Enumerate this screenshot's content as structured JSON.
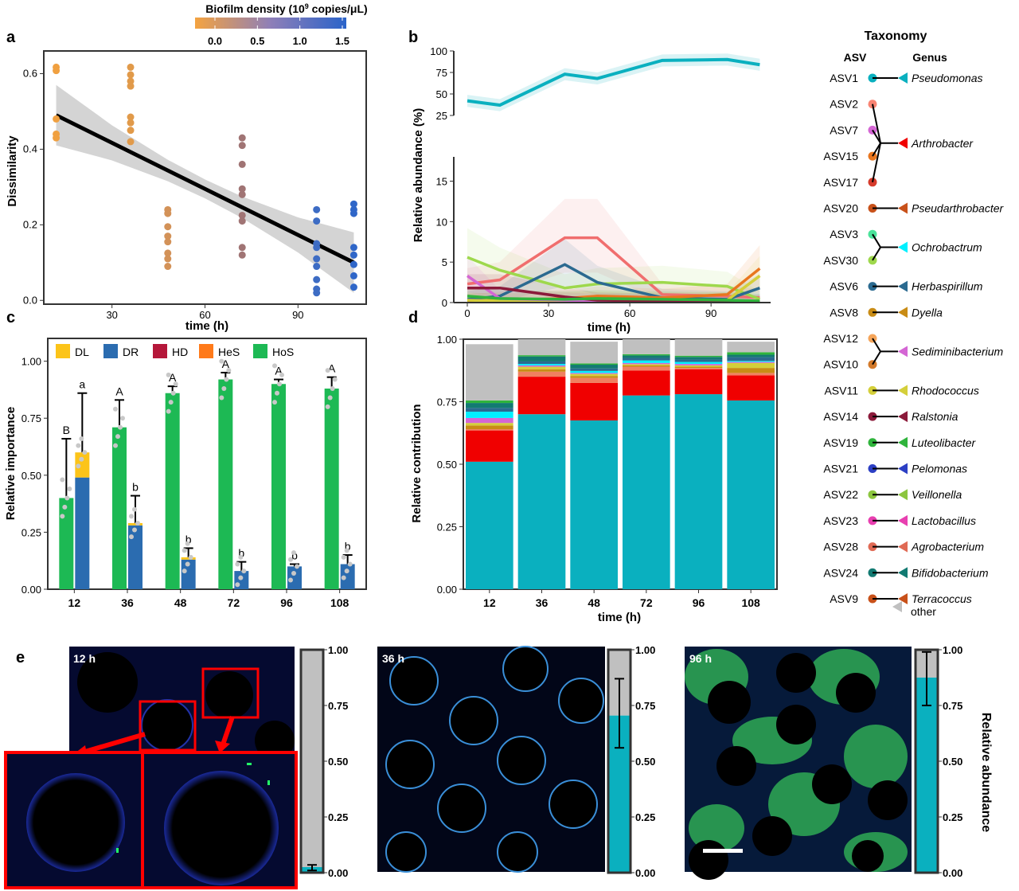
{
  "colors": {
    "pseudomonas": "#0ab0bf",
    "arthrobacter": "#f00000",
    "green": "#1db954",
    "blue": "#2b6cb0",
    "yellow": "#fcc419",
    "darkred": "#b5173a",
    "orange": "#ff7a1a",
    "grey": "#c0c0c0"
  },
  "colorbar": {
    "title_prefix": "Biofilm density (10",
    "title_sup": "9",
    "title_suffix": " copies/μL)",
    "ticks": [
      "0.0",
      "0.5",
      "1.0",
      "1.5"
    ],
    "stops": [
      "#f4a340",
      "#8e7fb8",
      "#2a63c9"
    ]
  },
  "taxonomy": {
    "title": "Taxonomy",
    "asv_header": "ASV",
    "genus_header": "Genus",
    "other_label": "other",
    "groups": [
      {
        "asvs": [
          {
            "name": "ASV1",
            "color": "#0ab0bf"
          }
        ],
        "genus": "Pseudomonas",
        "arrow": "#0ab0bf"
      },
      {
        "asvs": [
          {
            "name": "ASV2",
            "color": "#f98473"
          },
          {
            "name": "ASV7",
            "color": "#d466d4"
          },
          {
            "name": "ASV15",
            "color": "#e8761f"
          },
          {
            "name": "ASV17",
            "color": "#d63b2c"
          }
        ],
        "genus": "Arthrobacter",
        "arrow": "#f00000"
      },
      {
        "asvs": [
          {
            "name": "ASV20",
            "color": "#c8511a"
          }
        ],
        "genus": "Pseudarthrobacter",
        "arrow": "#c8511a"
      },
      {
        "asvs": [
          {
            "name": "ASV3",
            "color": "#4be39a"
          },
          {
            "name": "ASV30",
            "color": "#9ed84c"
          }
        ],
        "genus": "Ochrobactrum",
        "arrow": "#00f0ff"
      },
      {
        "asvs": [
          {
            "name": "ASV6",
            "color": "#2b6a90"
          }
        ],
        "genus": "Herbaspirillum",
        "arrow": "#2b6a90"
      },
      {
        "asvs": [
          {
            "name": "ASV8",
            "color": "#c98c15"
          }
        ],
        "genus": "Dyella",
        "arrow": "#c98c15"
      },
      {
        "asvs": [
          {
            "name": "ASV12",
            "color": "#f5a55a"
          },
          {
            "name": "ASV10",
            "color": "#d47a2a"
          }
        ],
        "genus": "Sediminibacterium",
        "arrow": "#d466d4"
      },
      {
        "asvs": [
          {
            "name": "ASV11",
            "color": "#d4cf3a"
          }
        ],
        "genus": "Rhodococcus",
        "arrow": "#d4cf3a"
      },
      {
        "asvs": [
          {
            "name": "ASV14",
            "color": "#8b1a3a"
          }
        ],
        "genus": "Ralstonia",
        "arrow": "#8b1a3a"
      },
      {
        "asvs": [
          {
            "name": "ASV19",
            "color": "#2fb43c"
          }
        ],
        "genus": "Luteolibacter",
        "arrow": "#2fb43c"
      },
      {
        "asvs": [
          {
            "name": "ASV21",
            "color": "#2c3fc4"
          }
        ],
        "genus": "Pelomonas",
        "arrow": "#2c3fc4"
      },
      {
        "asvs": [
          {
            "name": "ASV22",
            "color": "#8cc63f"
          }
        ],
        "genus": "Veillonella",
        "arrow": "#8cc63f"
      },
      {
        "asvs": [
          {
            "name": "ASV23",
            "color": "#e83fb0"
          }
        ],
        "genus": "Lactobacillus",
        "arrow": "#e83fb0"
      },
      {
        "asvs": [
          {
            "name": "ASV28",
            "color": "#e06a55"
          }
        ],
        "genus": "Agrobacterium",
        "arrow": "#e06a55"
      },
      {
        "asvs": [
          {
            "name": "ASV24",
            "color": "#127a72"
          }
        ],
        "genus": "Bifidobacterium",
        "arrow": "#127a72"
      },
      {
        "asvs": [
          {
            "name": "ASV9",
            "color": "#c8511a"
          }
        ],
        "genus": "Terracoccus",
        "arrow": "#c8511a"
      }
    ]
  },
  "chart_data": [
    {
      "panel": "a",
      "type": "scatter",
      "xlabel": "time (h)",
      "ylabel": "Dissimilarity",
      "xlim": [
        8,
        112
      ],
      "ylim": [
        -0.01,
        0.66
      ],
      "xticks": [
        30,
        60,
        90
      ],
      "yticks": [
        0.0,
        0.2,
        0.4,
        0.6
      ],
      "points": [
        {
          "x": 12,
          "y": 0.617
        },
        {
          "x": 12,
          "y": 0.608
        },
        {
          "x": 12,
          "y": 0.48
        },
        {
          "x": 12,
          "y": 0.44
        },
        {
          "x": 12,
          "y": 0.43
        },
        {
          "x": 36,
          "y": 0.617
        },
        {
          "x": 36,
          "y": 0.597
        },
        {
          "x": 36,
          "y": 0.58
        },
        {
          "x": 36,
          "y": 0.567
        },
        {
          "x": 36,
          "y": 0.485
        },
        {
          "x": 36,
          "y": 0.47
        },
        {
          "x": 36,
          "y": 0.45
        },
        {
          "x": 36,
          "y": 0.42
        },
        {
          "x": 48,
          "y": 0.24
        },
        {
          "x": 48,
          "y": 0.23
        },
        {
          "x": 48,
          "y": 0.195
        },
        {
          "x": 48,
          "y": 0.17
        },
        {
          "x": 48,
          "y": 0.155
        },
        {
          "x": 48,
          "y": 0.125
        },
        {
          "x": 48,
          "y": 0.11
        },
        {
          "x": 48,
          "y": 0.09
        },
        {
          "x": 72,
          "y": 0.43
        },
        {
          "x": 72,
          "y": 0.41
        },
        {
          "x": 72,
          "y": 0.36
        },
        {
          "x": 72,
          "y": 0.295
        },
        {
          "x": 72,
          "y": 0.28
        },
        {
          "x": 72,
          "y": 0.225
        },
        {
          "x": 72,
          "y": 0.21
        },
        {
          "x": 72,
          "y": 0.14
        },
        {
          "x": 72,
          "y": 0.12
        },
        {
          "x": 96,
          "y": 0.24
        },
        {
          "x": 96,
          "y": 0.21
        },
        {
          "x": 96,
          "y": 0.15
        },
        {
          "x": 96,
          "y": 0.14
        },
        {
          "x": 96,
          "y": 0.11
        },
        {
          "x": 96,
          "y": 0.09
        },
        {
          "x": 96,
          "y": 0.055
        },
        {
          "x": 96,
          "y": 0.03
        },
        {
          "x": 96,
          "y": 0.02
        },
        {
          "x": 108,
          "y": 0.255
        },
        {
          "x": 108,
          "y": 0.24
        },
        {
          "x": 108,
          "y": 0.23
        },
        {
          "x": 108,
          "y": 0.14
        },
        {
          "x": 108,
          "y": 0.12
        },
        {
          "x": 108,
          "y": 0.095
        },
        {
          "x": 108,
          "y": 0.065
        },
        {
          "x": 108,
          "y": 0.035
        }
      ],
      "point_colors": {
        "12": "#f0a040",
        "36": "#e19a4a",
        "48": "#d39258",
        "72": "#a07474",
        "96": "#3d6cc4",
        "108": "#2f66c8"
      },
      "regression": {
        "x": [
          12,
          108
        ],
        "y": [
          0.49,
          0.1
        ]
      }
    },
    {
      "panel": "b",
      "type": "line",
      "xlabel": "time (h)",
      "ylabel": "Relative abundance (%)",
      "x": [
        0,
        12,
        36,
        48,
        72,
        96,
        108
      ],
      "xticks": [
        0,
        30,
        60,
        90
      ],
      "upper": {
        "ylim": [
          25,
          100
        ],
        "yticks": [
          25,
          50,
          75,
          100
        ]
      },
      "lower": {
        "ylim": [
          0,
          18
        ],
        "yticks": [
          0,
          5,
          10,
          15
        ]
      },
      "series": [
        {
          "color": "#0ab0bf",
          "values": [
            42,
            37,
            73,
            68,
            89,
            90,
            84
          ],
          "panel": "upper"
        },
        {
          "color": "#f06e6e",
          "values": [
            2.3,
            2.8,
            8.0,
            8.0,
            1.0,
            0.8,
            0.6
          ]
        },
        {
          "color": "#9ed84c",
          "values": [
            5.6,
            4.0,
            1.8,
            2.3,
            2.5,
            2.0,
            0.4
          ]
        },
        {
          "color": "#2b6a90",
          "values": [
            0.4,
            0.8,
            4.7,
            2.5,
            0.6,
            0.4,
            1.8
          ]
        },
        {
          "color": "#e8761f",
          "values": [
            0.2,
            0.3,
            0.5,
            0.8,
            0.6,
            1.0,
            4.2
          ]
        },
        {
          "color": "#d4cf3a",
          "values": [
            0.3,
            0.2,
            0.3,
            0.4,
            0.3,
            0.3,
            3.3
          ]
        },
        {
          "color": "#d466d4",
          "values": [
            3.3,
            0.5,
            0.3,
            0.2,
            0.1,
            0.1,
            0.1
          ]
        },
        {
          "color": "#8b1a3a",
          "values": [
            1.8,
            1.8,
            0.7,
            0.3,
            0.2,
            0.1,
            0.1
          ]
        },
        {
          "color": "#2fb43c",
          "values": [
            0.8,
            0.5,
            0.4,
            0.5,
            0.4,
            0.3,
            0.2
          ]
        }
      ]
    },
    {
      "panel": "c",
      "type": "bar",
      "xlabel": "",
      "ylabel": "Relative importance",
      "ylim": [
        0,
        1.1
      ],
      "yticks": [
        0.0,
        0.25,
        0.5,
        0.75,
        1.0
      ],
      "categories": [
        "12",
        "36",
        "48",
        "72",
        "96",
        "108"
      ],
      "legend": [
        "DL",
        "DR",
        "HD",
        "HeS",
        "HoS"
      ],
      "legend_colors": [
        "#fcc419",
        "#2b6cb0",
        "#b5173a",
        "#ff7a1a",
        "#1db954"
      ],
      "hos": [
        0.4,
        0.71,
        0.86,
        0.92,
        0.9,
        0.88
      ],
      "hos_err": [
        0.26,
        0.12,
        0.03,
        0.03,
        0.02,
        0.05
      ],
      "dr": [
        0.49,
        0.28,
        0.13,
        0.08,
        0.1,
        0.11
      ],
      "dl": [
        0.11,
        0.01,
        0.01,
        0.0,
        0.0,
        0.0
      ],
      "dr_err": [
        0.26,
        0.12,
        0.04,
        0.04,
        0.01,
        0.04
      ],
      "letters_upper": [
        "B",
        "A",
        "A",
        "A",
        "A",
        "A"
      ],
      "letters_lower": [
        "a",
        "b",
        "b",
        "b",
        "b",
        "b"
      ]
    },
    {
      "panel": "d",
      "type": "bar",
      "xlabel": "time (h)",
      "ylabel": "Relative contribution",
      "ylim": [
        0,
        1.0
      ],
      "yticks": [
        0.0,
        0.25,
        0.5,
        0.75,
        1.0
      ],
      "categories": [
        "12",
        "36",
        "48",
        "72",
        "96",
        "108"
      ],
      "stack_order": [
        "Pseudomonas",
        "Arthrobacter",
        "Pseudarthrobacter",
        "Dyella",
        "Rhodococcus",
        "Sediminibacterium",
        "Ochrobactrum",
        "Herbaspirillum",
        "Bifidobacterium",
        "Luteolibacter",
        "other"
      ],
      "stack_colors": [
        "#0ab0bf",
        "#f00000",
        "#f08060",
        "#c98c15",
        "#d4cf3a",
        "#d466d4",
        "#00f0ff",
        "#2b6a90",
        "#127a72",
        "#2fb43c",
        "#c0c0c0"
      ],
      "values": [
        [
          0.51,
          0.7,
          0.675,
          0.775,
          0.78,
          0.755
        ],
        [
          0.125,
          0.15,
          0.15,
          0.1,
          0.1,
          0.1
        ],
        [
          0.005,
          0.02,
          0.02,
          0.015,
          0.005,
          0.01
        ],
        [
          0.015,
          0.01,
          0.008,
          0.005,
          0.005,
          0.02
        ],
        [
          0.01,
          0.01,
          0.008,
          0.005,
          0.005,
          0.02
        ],
        [
          0.02,
          0.005,
          0.004,
          0.005,
          0.006,
          0.004
        ],
        [
          0.025,
          0.006,
          0.008,
          0.01,
          0.008,
          0.004
        ],
        [
          0.015,
          0.01,
          0.01,
          0.01,
          0.01,
          0.015
        ],
        [
          0.02,
          0.02,
          0.015,
          0.01,
          0.01,
          0.01
        ],
        [
          0.01,
          0.005,
          0.005,
          0.005,
          0.005,
          0.01
        ],
        [
          0.225,
          0.064,
          0.087,
          0.06,
          0.066,
          0.042
        ]
      ]
    },
    {
      "panel": "e",
      "type": "bar",
      "ylabel": "Relative abundance",
      "ylim": [
        0,
        1.0
      ],
      "yticks": [
        "0.00",
        "0.25",
        "0.50",
        "0.75",
        "1.00"
      ],
      "categories": [
        "12 h",
        "36 h",
        "96 h"
      ],
      "series": [
        {
          "color": "#f00000",
          "values": [
            0.005,
            0.005,
            0.005
          ]
        },
        {
          "color": "#0ab0bf",
          "values": [
            0.02,
            0.7,
            0.87
          ]
        },
        {
          "color": "#c0c0c0",
          "values": [
            0.975,
            0.295,
            0.125
          ]
        }
      ],
      "error_top": [
        0.035,
        0.87,
        0.99
      ],
      "error_bottom": [
        0.01,
        0.56,
        0.75
      ]
    }
  ],
  "panel_labels": [
    "a",
    "b",
    "c",
    "d",
    "e"
  ]
}
